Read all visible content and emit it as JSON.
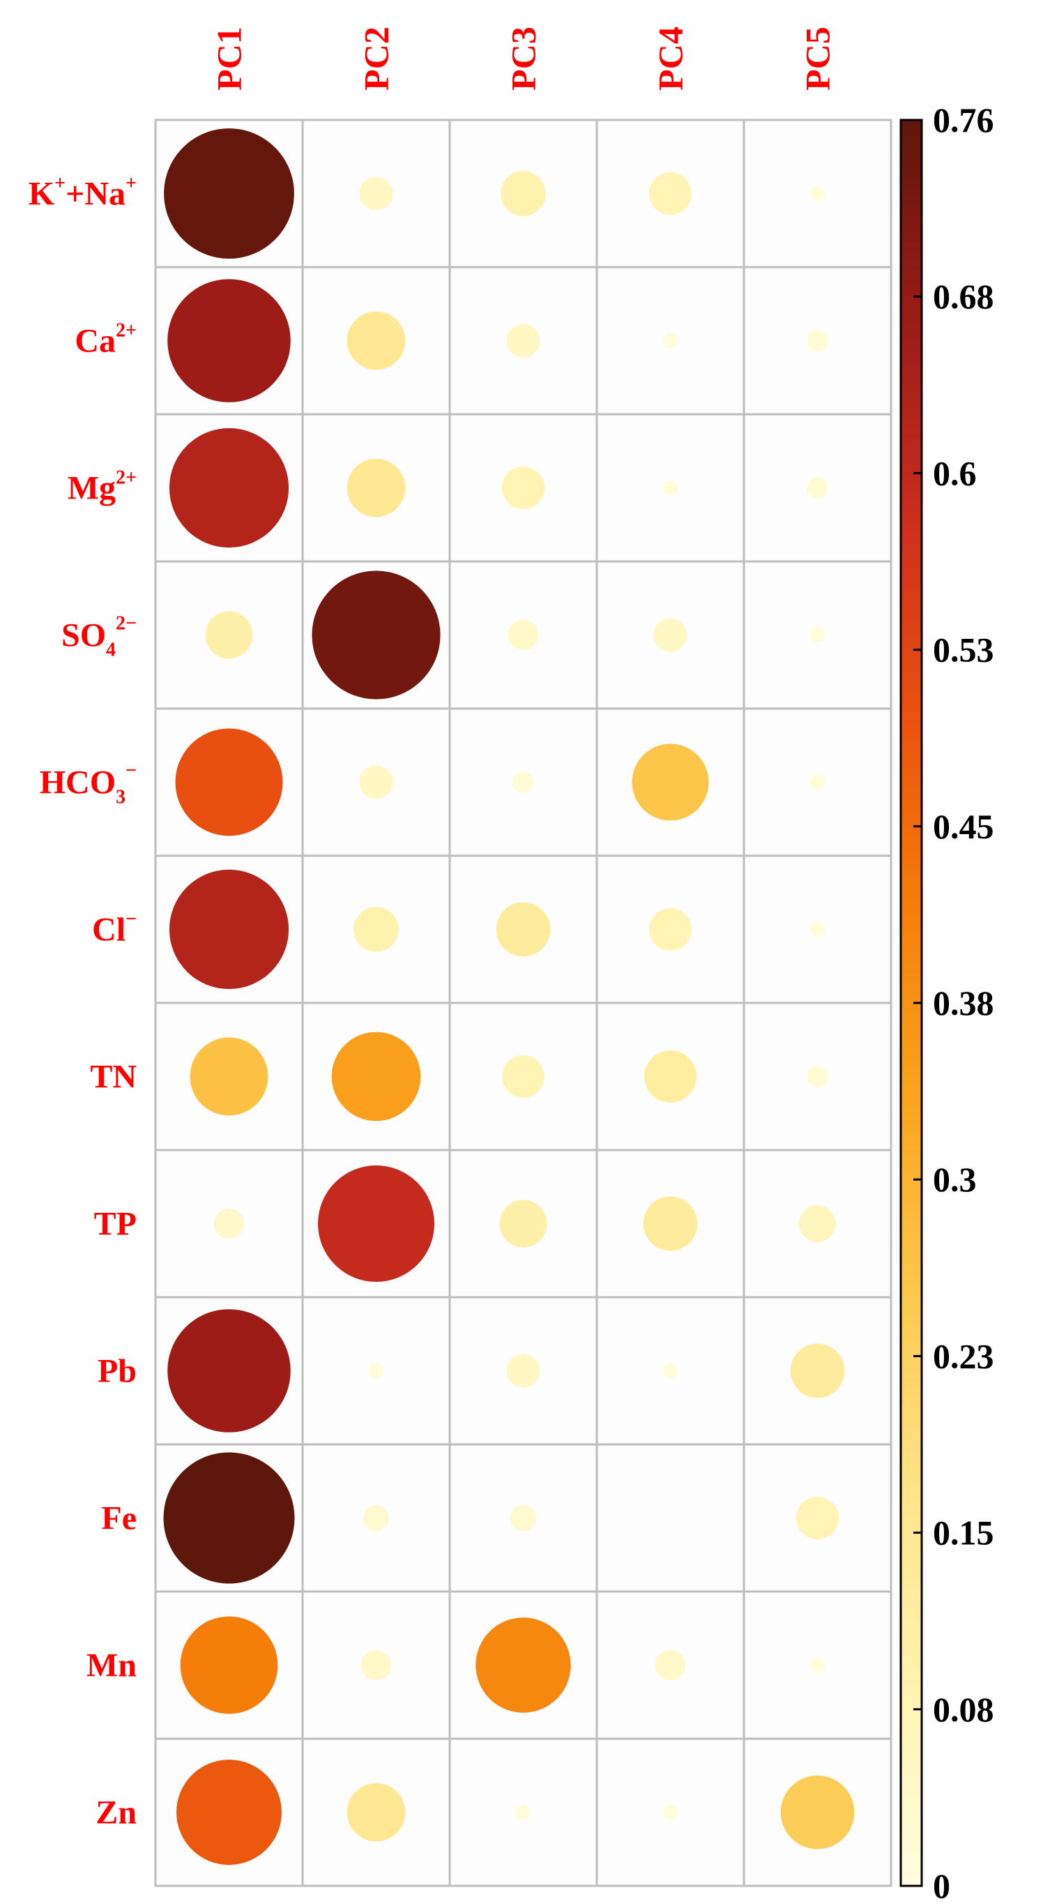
{
  "chart_data": {
    "type": "heatmap",
    "columns": [
      "PC1",
      "PC2",
      "PC3",
      "PC4",
      "PC5"
    ],
    "rows": [
      {
        "base": "K",
        "sup": "+",
        "base2": "+Na",
        "sup2": "+"
      },
      {
        "base": "Ca",
        "sup": "2+"
      },
      {
        "base": "Mg",
        "sup": "2+"
      },
      {
        "base": "SO",
        "sub": "4",
        "sup": "2−"
      },
      {
        "base": "HCO",
        "sub": "3",
        "sup": "−"
      },
      {
        "base": "Cl",
        "sup": "−"
      },
      {
        "base": "TN"
      },
      {
        "base": "TP"
      },
      {
        "base": "Pb"
      },
      {
        "base": "Fe"
      },
      {
        "base": "Mn"
      },
      {
        "base": "Zn"
      }
    ],
    "values": [
      [
        0.75,
        0.05,
        0.09,
        0.08,
        0.01
      ],
      [
        0.67,
        0.15,
        0.05,
        0.01,
        0.02
      ],
      [
        0.63,
        0.15,
        0.08,
        0.01,
        0.02
      ],
      [
        0.1,
        0.73,
        0.04,
        0.05,
        0.01
      ],
      [
        0.51,
        0.05,
        0.02,
        0.26,
        0.01
      ],
      [
        0.63,
        0.09,
        0.13,
        0.08,
        0.01
      ],
      [
        0.27,
        0.35,
        0.08,
        0.12,
        0.02
      ],
      [
        0.04,
        0.6,
        0.1,
        0.13,
        0.06
      ],
      [
        0.67,
        0.01,
        0.05,
        0.01,
        0.13
      ],
      [
        0.76,
        0.03,
        0.03,
        0.0,
        0.08
      ],
      [
        0.42,
        0.04,
        0.4,
        0.04,
        0.01
      ],
      [
        0.49,
        0.15,
        0.01,
        0.01,
        0.24
      ]
    ],
    "colorbar": {
      "min": 0,
      "max": 0.76,
      "ticks": [
        "0.76",
        "0.68",
        "0.6",
        "0.53",
        "0.45",
        "0.38",
        "0.3",
        "0.23",
        "0.15",
        "0.08",
        "0"
      ],
      "colors": [
        "#fffde0",
        "#fff3b0",
        "#ffe48a",
        "#fdc94e",
        "#fba51e",
        "#f57d0a",
        "#e9500f",
        "#c92d1e",
        "#9a1b17",
        "#5e170b"
      ]
    },
    "grid": true,
    "legend": "right",
    "label_color": "#ff0000"
  }
}
